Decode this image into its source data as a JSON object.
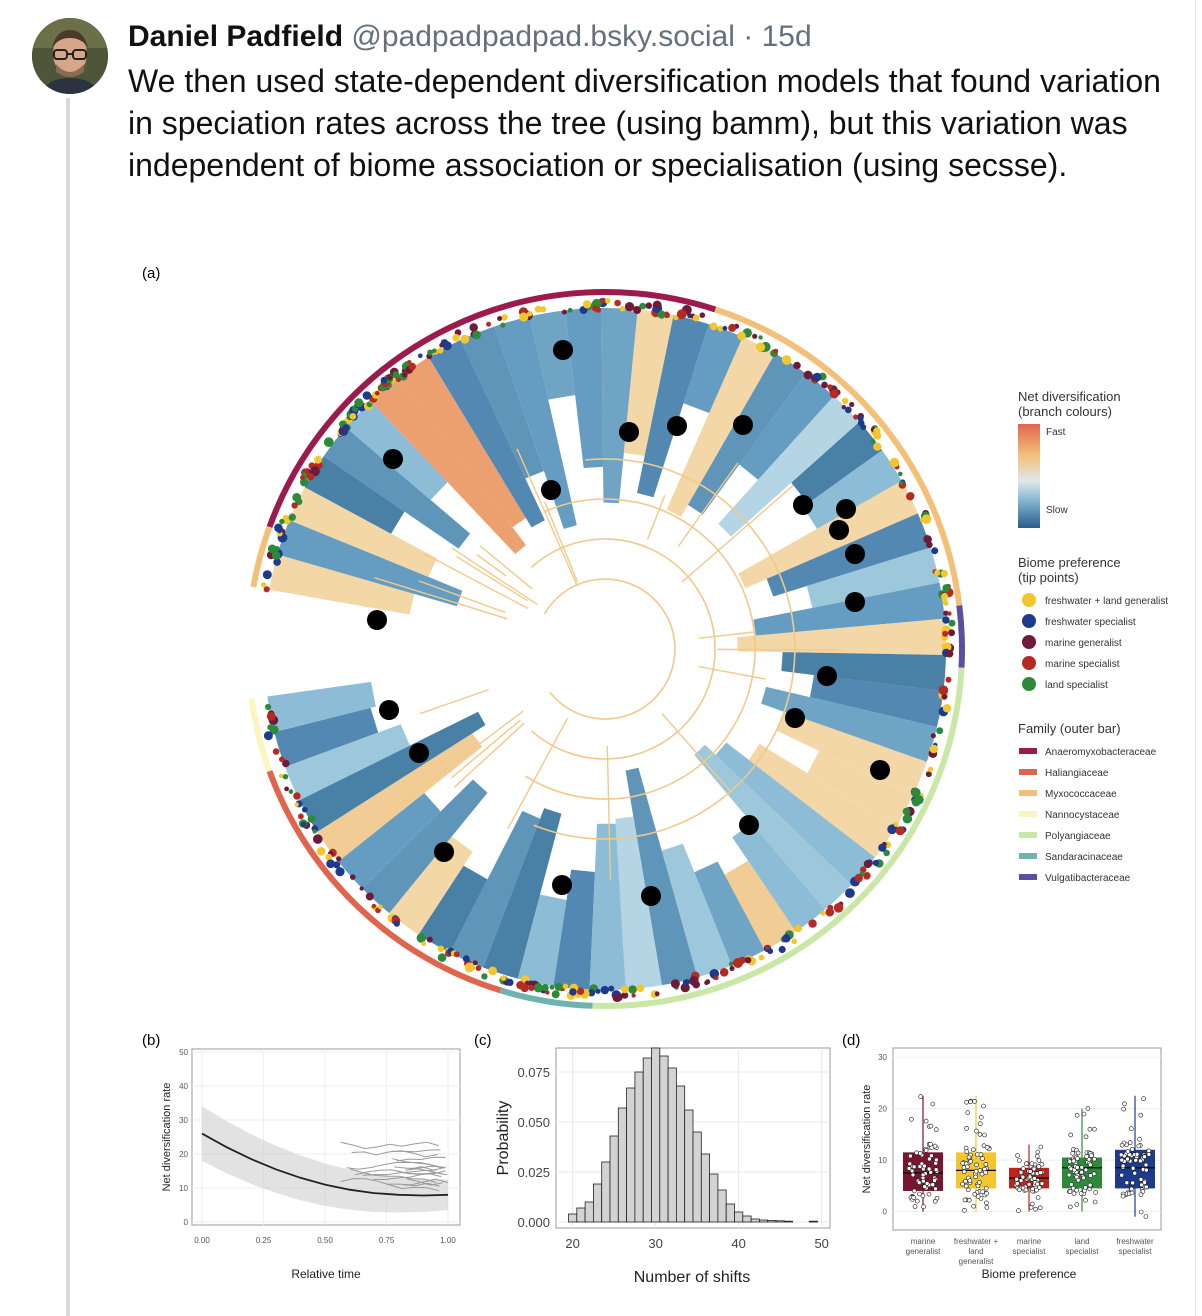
{
  "post": {
    "author": "Daniel Padfield",
    "handle": "@padpadpadpad.bsky.social",
    "separator": "·",
    "age": "15d",
    "text": "We then used state-dependent diversification models that found variation in speciation rates across the tree (using bamm), but this variation was independent of biome association or specialisation (using secsse)."
  },
  "figure": {
    "panel_a": {
      "label": "(a)",
      "legend": {
        "net_div_title_1": "Net diversification",
        "net_div_title_2": "(branch colours)",
        "fast": "Fast",
        "slow": "Slow",
        "biome_title_1": "Biome preference",
        "biome_title_2": "(tip points)",
        "biomes": [
          {
            "label": "freshwater + land generalist",
            "color": "#f2c62c"
          },
          {
            "label": "freshwater specialist",
            "color": "#1d3a8c"
          },
          {
            "label": "marine generalist",
            "color": "#6e1a3a"
          },
          {
            "label": "marine specialist",
            "color": "#b52a23"
          },
          {
            "label": "land specialist",
            "color": "#2e8a3b"
          }
        ],
        "family_title": "Family (outer bar)",
        "families": [
          {
            "label": "Anaeromyxobacteraceae",
            "color": "#9b1b4d"
          },
          {
            "label": "Haliangiaceae",
            "color": "#e0654f"
          },
          {
            "label": "Myxococcaceae",
            "color": "#f3c07a"
          },
          {
            "label": "Nannocystaceae",
            "color": "#fbf5c0"
          },
          {
            "label": "Polyangiaceae",
            "color": "#c9e7a6"
          },
          {
            "label": "Sandaracinaceae",
            "color": "#6fb3b0"
          },
          {
            "label": "Vulgatibacteraceae",
            "color": "#5c4fa0"
          }
        ]
      }
    },
    "panel_b": {
      "label": "(b)",
      "ylabel": "Net diversification rate",
      "xlabel": "Relative time",
      "yticks": [
        "0",
        "10",
        "20",
        "30",
        "40",
        "50"
      ],
      "xticks": [
        "0.00",
        "0.25",
        "0.50",
        "0.75",
        "1.00"
      ]
    },
    "panel_c": {
      "label": "(c)",
      "ylabel": "Probability",
      "xlabel": "Number of shifts",
      "yticks": [
        "0.000",
        "0.025",
        "0.050",
        "0.075"
      ],
      "xticks": [
        "20",
        "30",
        "40",
        "50"
      ]
    },
    "panel_d": {
      "label": "(d)",
      "ylabel": "Net diversification rate",
      "xlabel": "Biome preference",
      "yticks": [
        "0",
        "10",
        "20",
        "30"
      ],
      "categories": [
        {
          "line1": "marine",
          "line2": "generalist",
          "line3": "",
          "color": "#7a1530"
        },
        {
          "line1": "freshwater +",
          "line2": "land",
          "line3": "generalist",
          "color": "#f2c62c"
        },
        {
          "line1": "marine",
          "line2": "specialist",
          "line3": "",
          "color": "#c0231c"
        },
        {
          "line1": "land",
          "line2": "specialist",
          "line3": "",
          "color": "#2e8a3b"
        },
        {
          "line1": "freshwater",
          "line2": "specialist",
          "line3": "",
          "color": "#1d3a8c"
        }
      ]
    }
  },
  "chart_data": [
    {
      "type": "line",
      "panel": "(b)",
      "xlabel": "Relative time",
      "ylabel": "Net diversification rate",
      "xlim": [
        0,
        1
      ],
      "ylim": [
        0,
        50
      ],
      "series": [
        {
          "x": [
            0.0,
            0.1,
            0.2,
            0.3,
            0.4,
            0.5,
            0.6,
            0.7,
            0.8,
            0.9,
            1.0
          ],
          "y": [
            26,
            22,
            18.5,
            15.5,
            13,
            11,
            9.5,
            8.5,
            8,
            7.8,
            8
          ]
        }
      ]
    },
    {
      "type": "bar",
      "panel": "(c)",
      "xlabel": "Number of shifts",
      "ylabel": "Probability",
      "xlim": [
        18,
        51
      ],
      "ylim": [
        0,
        0.085
      ],
      "categories": [
        20,
        21,
        22,
        23,
        24,
        25,
        26,
        27,
        28,
        29,
        30,
        31,
        32,
        33,
        34,
        35,
        36,
        37,
        38,
        39,
        40,
        41,
        42,
        43,
        44,
        45,
        46,
        49
      ],
      "values": [
        0.004,
        0.007,
        0.01,
        0.019,
        0.03,
        0.043,
        0.057,
        0.067,
        0.075,
        0.082,
        0.087,
        0.083,
        0.077,
        0.068,
        0.056,
        0.045,
        0.034,
        0.024,
        0.016,
        0.009,
        0.005,
        0.003,
        0.0015,
        0.001,
        0.0008,
        0.0006,
        0.0004,
        0.0004
      ]
    },
    {
      "type": "box",
      "panel": "(d)",
      "xlabel": "Biome preference",
      "ylabel": "Net diversification rate",
      "ylim": [
        -3,
        31
      ],
      "categories": [
        "marine generalist",
        "freshwater + land generalist",
        "marine specialist",
        "land specialist",
        "freshwater specialist"
      ],
      "boxes": [
        {
          "min": 0,
          "q1": 4,
          "median": 7.5,
          "q3": 11.5,
          "max": 22.5
        },
        {
          "min": 0,
          "q1": 4.5,
          "median": 8,
          "q3": 11.5,
          "max": 22.5
        },
        {
          "min": 0,
          "q1": 4.5,
          "median": 6.5,
          "q3": 8.5,
          "max": 13
        },
        {
          "min": 0,
          "q1": 4.5,
          "median": 8.5,
          "q3": 10.5,
          "max": 20
        },
        {
          "min": -1,
          "q1": 4.5,
          "median": 8.5,
          "q3": 12,
          "max": 22.5
        }
      ]
    }
  ]
}
